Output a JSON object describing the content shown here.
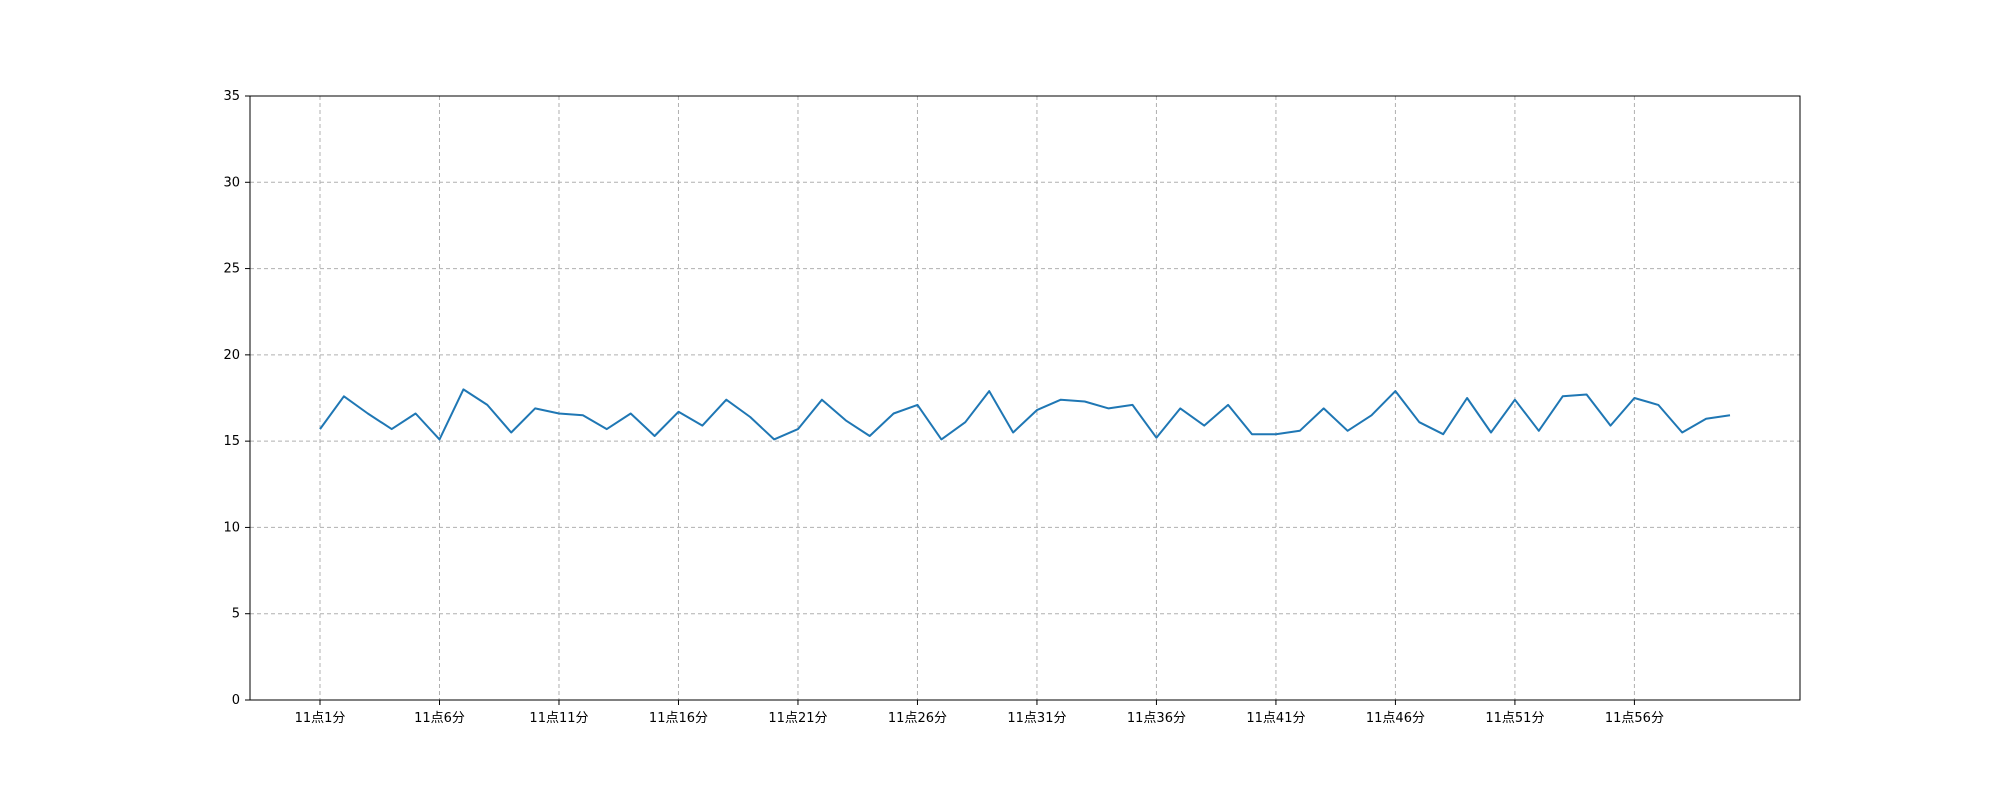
{
  "chart_data": {
    "type": "line",
    "title": "",
    "xlabel": "",
    "ylabel": "",
    "ylim": [
      0,
      35
    ],
    "yticks": [
      0,
      5,
      10,
      15,
      20,
      25,
      30,
      35
    ],
    "x": [
      "11点1分",
      "11点2分",
      "11点3分",
      "11点4分",
      "11点5分",
      "11点6分",
      "11点7分",
      "11点8分",
      "11点9分",
      "11点10分",
      "11点11分",
      "11点12分",
      "11点13分",
      "11点14分",
      "11点15分",
      "11点16分",
      "11点17分",
      "11点18分",
      "11点19分",
      "11点20分",
      "11点21分",
      "11点22分",
      "11点23分",
      "11点24分",
      "11点25分",
      "11点26分",
      "11点27分",
      "11点28分",
      "11点29分",
      "11点30分",
      "11点31分",
      "11点32分",
      "11点33分",
      "11点34分",
      "11点35分",
      "11点36分",
      "11点37分",
      "11点38分",
      "11点39分",
      "11点40分",
      "11点41分",
      "11点42分",
      "11点43分",
      "11点44分",
      "11点45分",
      "11点46分",
      "11点47分",
      "11点48分",
      "11点49分",
      "11点50分",
      "11点51分",
      "11点52分",
      "11点53分",
      "11点54分",
      "11点55分",
      "11点56分",
      "11点57分",
      "11点58分",
      "11点59分",
      "11点60分"
    ],
    "xtick_labels": [
      "11点1分",
      "11点6分",
      "11点11分",
      "11点16分",
      "11点21分",
      "11点26分",
      "11点31分",
      "11点36分",
      "11点41分",
      "11点46分",
      "11点51分",
      "11点56分"
    ],
    "grid": true,
    "series": [
      {
        "color": "#1f77b4",
        "values": [
          15.7,
          17.6,
          16.6,
          15.7,
          16.6,
          15.1,
          18.0,
          17.1,
          15.5,
          16.9,
          16.6,
          16.5,
          15.7,
          16.6,
          15.3,
          16.7,
          15.9,
          17.4,
          16.4,
          15.1,
          15.7,
          17.4,
          16.2,
          15.3,
          16.6,
          17.1,
          15.1,
          16.1,
          17.9,
          15.5,
          16.8,
          17.4,
          17.3,
          16.9,
          17.1,
          15.2,
          16.9,
          15.9,
          17.1,
          15.4,
          15.4,
          15.6,
          16.9,
          15.6,
          16.5,
          17.9,
          16.1,
          15.4,
          17.5,
          15.5,
          17.4,
          15.6,
          17.6,
          17.7,
          15.9,
          17.5,
          17.1,
          15.5,
          16.3,
          16.5
        ]
      }
    ]
  }
}
